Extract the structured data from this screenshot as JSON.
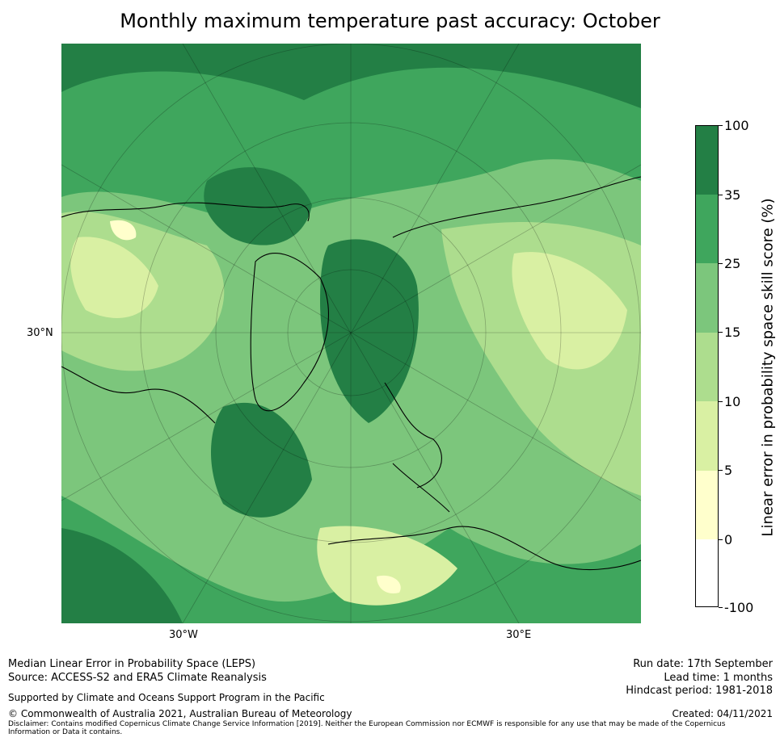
{
  "title": "Monthly maximum temperature past accuracy: October",
  "map": {
    "latitude_labels": [
      "30°N"
    ],
    "longitude_labels": [
      "30°W",
      "30°E"
    ]
  },
  "legend": {
    "title": "Linear error in probability space skill score (%)",
    "tick_labels": [
      "100",
      "35",
      "25",
      "15",
      "10",
      "5",
      "0",
      "-100"
    ],
    "bins": [
      {
        "range": "35 to 100",
        "color": "#237f45"
      },
      {
        "range": "25 to 35",
        "color": "#3fa65d"
      },
      {
        "range": "15 to 25",
        "color": "#7cc67c"
      },
      {
        "range": "10 to 15",
        "color": "#addd8e"
      },
      {
        "range": "5 to 10",
        "color": "#d9f0a3"
      },
      {
        "range": "0 to 5",
        "color": "#ffffcc"
      },
      {
        "range": "-100 to 0",
        "color": "#ffffff"
      }
    ]
  },
  "footer": {
    "metric": "Median Linear Error in Probability Space (LEPS)",
    "source": "Source: ACCESS-S2 and ERA5 Climate Reanalysis",
    "support": "Supported by Climate and Oceans Support Program in the Pacific",
    "copyright": "© Commonwealth of Australia 2021, Australian Bureau of Meteorology",
    "disclaimer": "Disclaimer: Contains modified Copernicus Climate Change Service Information [2019]. Neither the European Commission nor ECMWF is responsible for any use that may be made of the Copernicus Information or Data it contains.",
    "run_date": "Run date: 17th September",
    "lead_time": "Lead time: 1 months",
    "hindcast": "Hindcast period: 1981-2018",
    "created": "Created: 04/11/2021"
  }
}
